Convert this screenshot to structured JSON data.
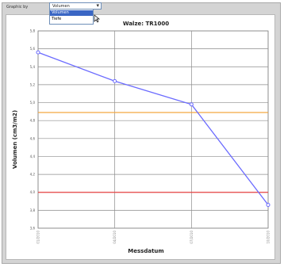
{
  "toolbar": {
    "graphic_by_label": "Graphic by",
    "dropdown": {
      "selected": "Volumen",
      "options": [
        "Volumen",
        "Tiefe"
      ],
      "highlighted_index": 0
    }
  },
  "chart_data": {
    "type": "line",
    "title": "Walze: TR1000",
    "xlabel": "Messdatum",
    "ylabel": "Volumen (cm3/m2)",
    "ylim": [
      3.6,
      5.8
    ],
    "yticks": [
      "3,6",
      "3,8",
      "4,0",
      "4,2",
      "4,4",
      "4,6",
      "4,8",
      "5,0",
      "5,2",
      "5,4",
      "5,6",
      "5,8"
    ],
    "categories": [
      "01/2010",
      "04/2010",
      "07/2010",
      "10/2010"
    ],
    "series": [
      {
        "values": [
          5.56,
          5.24,
          4.98,
          3.86
        ],
        "color": "#6b6bff"
      }
    ],
    "reference_lines": [
      {
        "value": 4.89,
        "color": "#f4a640"
      },
      {
        "value": 4.0,
        "color": "#e84545"
      }
    ],
    "grid": true
  }
}
